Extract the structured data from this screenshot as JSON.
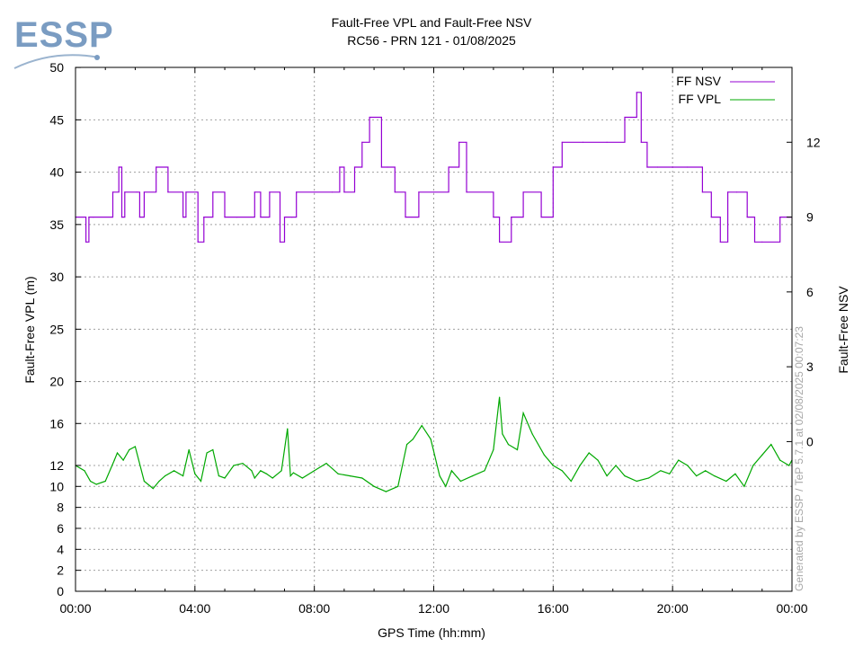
{
  "logo": {
    "text": "ESSP"
  },
  "chart_data": {
    "type": "line",
    "title": "Fault-Free VPL and Fault-Free NSV",
    "subtitle": "RC56 - PRN 121 - 01/08/2025",
    "xlabel": "GPS Time (hh:mm)",
    "ylabel": "Fault-Free VPL (m)",
    "y2label": "Fault-Free NSV",
    "watermark": "Generated by ESSP / TeP 5.7.1 at 02/08/2025 00:07:23",
    "xlim": [
      0,
      24
    ],
    "x_ticks": [
      "00:00",
      "04:00",
      "08:00",
      "12:00",
      "16:00",
      "20:00",
      "00:00"
    ],
    "y_ticks": [
      "0",
      "2",
      "4",
      "6",
      "8",
      "10",
      "12",
      "16",
      "20",
      "25",
      "30",
      "35",
      "40",
      "45",
      "50"
    ],
    "y_tick_values": [
      0,
      2,
      4,
      6,
      8,
      10,
      12,
      16,
      20,
      25,
      30,
      35,
      40,
      45,
      50
    ],
    "y_scale": "piecewise: 0-20 m on lower half, 20-50 m on upper half",
    "y2_ticks": [
      "0",
      "3",
      "6",
      "9",
      "12"
    ],
    "y2_tick_values": [
      0,
      3,
      6,
      9,
      12
    ],
    "y2lim": [
      -6,
      15
    ],
    "grid": true,
    "legend": "top-right",
    "colors": {
      "nsv": "#9400d3",
      "vpl": "#00a800"
    },
    "series": [
      {
        "name": "FF NSV",
        "axis": "y2",
        "step": true,
        "x": [
          0.0,
          0.35,
          0.45,
          0.6,
          1.25,
          1.45,
          1.55,
          1.65,
          2.05,
          2.15,
          2.3,
          2.7,
          3.1,
          3.6,
          3.7,
          4.1,
          4.3,
          4.6,
          5.0,
          5.4,
          6.0,
          6.2,
          6.5,
          6.85,
          7.0,
          7.25,
          7.4,
          8.0,
          8.6,
          8.85,
          9.0,
          9.35,
          9.6,
          9.85,
          10.25,
          10.45,
          10.7,
          11.05,
          11.5,
          12.0,
          12.5,
          12.85,
          13.1,
          14.0,
          14.2,
          14.6,
          15.0,
          15.6,
          16.0,
          16.3,
          17.0,
          17.8,
          18.4,
          18.8,
          18.95,
          19.15,
          19.5,
          20.0,
          20.5,
          21.0,
          21.3,
          21.6,
          21.85,
          22.15,
          22.5,
          22.75,
          23.0,
          23.6,
          23.9
        ],
        "values": [
          9,
          8,
          9,
          9,
          10,
          11,
          9,
          10,
          10,
          9,
          10,
          11,
          10,
          9,
          10,
          8,
          9,
          10,
          9,
          9,
          10,
          9,
          10,
          8,
          9,
          9,
          10,
          10,
          10,
          11,
          10,
          11,
          12,
          13,
          11,
          11,
          10,
          9,
          10,
          10,
          11,
          12,
          10,
          9,
          8,
          9,
          10,
          9,
          11,
          12,
          12,
          12,
          13,
          14,
          12,
          11,
          11,
          11,
          11,
          10,
          9,
          8,
          10,
          10,
          9,
          8,
          8,
          9,
          9
        ]
      },
      {
        "name": "FF VPL",
        "axis": "y",
        "step": false,
        "x": [
          0.0,
          0.3,
          0.5,
          0.7,
          1.0,
          1.3,
          1.4,
          1.6,
          1.8,
          2.0,
          2.3,
          2.6,
          2.8,
          3.0,
          3.3,
          3.6,
          3.8,
          4.0,
          4.2,
          4.4,
          4.6,
          4.8,
          5.0,
          5.3,
          5.6,
          5.9,
          6.0,
          6.2,
          6.4,
          6.6,
          6.9,
          7.1,
          7.2,
          7.3,
          7.6,
          8.0,
          8.4,
          8.8,
          9.2,
          9.6,
          10.0,
          10.4,
          10.8,
          11.1,
          11.3,
          11.6,
          11.9,
          12.2,
          12.4,
          12.6,
          12.9,
          13.3,
          13.7,
          14.0,
          14.2,
          14.3,
          14.5,
          14.8,
          15.0,
          15.3,
          15.7,
          16.0,
          16.3,
          16.6,
          16.9,
          17.2,
          17.5,
          17.8,
          18.1,
          18.4,
          18.8,
          19.2,
          19.6,
          19.9,
          20.2,
          20.5,
          20.8,
          21.1,
          21.4,
          21.8,
          22.1,
          22.4,
          22.7,
          23.0,
          23.3,
          23.6,
          23.9,
          24.0
        ],
        "values": [
          12.0,
          11.5,
          10.5,
          10.2,
          10.5,
          12.5,
          13.2,
          12.5,
          13.5,
          13.8,
          10.5,
          9.8,
          10.5,
          11.0,
          11.5,
          11.0,
          13.5,
          11.2,
          10.5,
          13.2,
          13.5,
          11.0,
          10.8,
          12.0,
          12.2,
          11.5,
          10.8,
          11.5,
          11.2,
          10.8,
          11.5,
          15.5,
          11.0,
          11.3,
          10.8,
          11.5,
          12.2,
          11.2,
          11.0,
          10.8,
          10.0,
          9.5,
          10.0,
          14.0,
          14.5,
          15.8,
          14.5,
          11.0,
          10.0,
          11.5,
          10.5,
          11.0,
          11.5,
          13.5,
          18.5,
          15.0,
          14.0,
          13.5,
          17.0,
          15.0,
          13.0,
          12.0,
          11.5,
          10.5,
          12.0,
          13.2,
          12.5,
          11.0,
          12.0,
          11.0,
          10.5,
          10.8,
          11.5,
          11.2,
          12.5,
          12.0,
          11.0,
          11.5,
          11.0,
          10.5,
          11.2,
          10.0,
          12.0,
          13.0,
          14.0,
          12.5,
          12.0,
          12.5
        ]
      }
    ]
  }
}
